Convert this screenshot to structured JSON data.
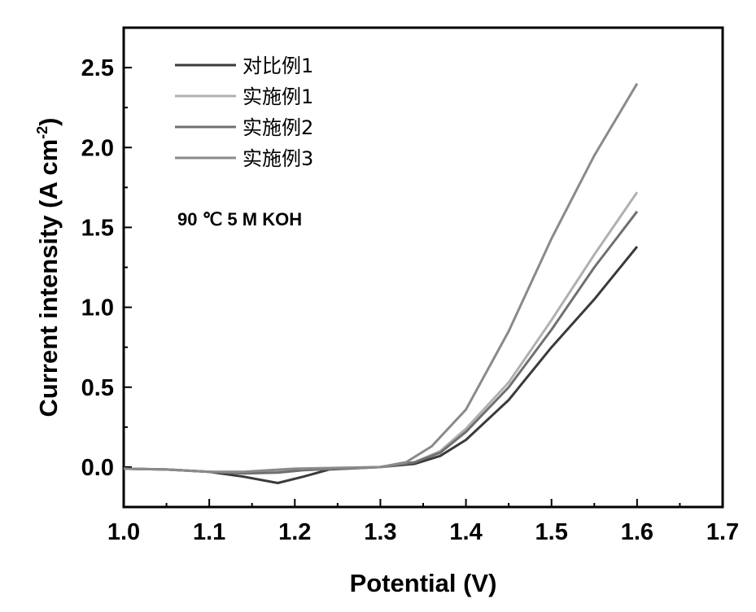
{
  "chart_data": {
    "type": "line",
    "xlabel": "Potential (V)",
    "ylabel_main": "Current intensity (A cm",
    "ylabel_sup": "-2",
    "ylabel_close": ")",
    "xlim": [
      1.0,
      1.7
    ],
    "ylim": [
      -0.25,
      2.75
    ],
    "x_ticks": [
      "1.0",
      "1.1",
      "1.2",
      "1.3",
      "1.4",
      "1.5",
      "1.6",
      "1.7"
    ],
    "y_ticks": [
      "0.0",
      "0.5",
      "1.0",
      "1.5",
      "2.0",
      "2.5"
    ],
    "grid": false,
    "legend_position": "top-left",
    "annotation": "90 ℃  5 M KOH",
    "series": [
      {
        "name": "对比例1",
        "color": "#3a3a3a",
        "points": [
          [
            1.0,
            -0.01
          ],
          [
            1.05,
            -0.015
          ],
          [
            1.1,
            -0.03
          ],
          [
            1.14,
            -0.06
          ],
          [
            1.18,
            -0.1
          ],
          [
            1.21,
            -0.06
          ],
          [
            1.24,
            -0.015
          ],
          [
            1.3,
            0.0
          ],
          [
            1.34,
            0.02
          ],
          [
            1.37,
            0.07
          ],
          [
            1.4,
            0.17
          ],
          [
            1.45,
            0.42
          ],
          [
            1.5,
            0.75
          ],
          [
            1.55,
            1.05
          ],
          [
            1.6,
            1.38
          ]
        ]
      },
      {
        "name": "实施例1",
        "color": "#b0b0b0",
        "points": [
          [
            1.0,
            -0.01
          ],
          [
            1.05,
            -0.015
          ],
          [
            1.1,
            -0.03
          ],
          [
            1.14,
            -0.035
          ],
          [
            1.18,
            -0.03
          ],
          [
            1.21,
            -0.015
          ],
          [
            1.25,
            -0.01
          ],
          [
            1.3,
            0.0
          ],
          [
            1.34,
            0.03
          ],
          [
            1.37,
            0.1
          ],
          [
            1.4,
            0.24
          ],
          [
            1.45,
            0.53
          ],
          [
            1.5,
            0.92
          ],
          [
            1.55,
            1.33
          ],
          [
            1.6,
            1.72
          ]
        ]
      },
      {
        "name": "实施例2",
        "color": "#707070",
        "points": [
          [
            1.0,
            -0.01
          ],
          [
            1.05,
            -0.015
          ],
          [
            1.1,
            -0.03
          ],
          [
            1.14,
            -0.04
          ],
          [
            1.18,
            -0.035
          ],
          [
            1.21,
            -0.02
          ],
          [
            1.25,
            -0.01
          ],
          [
            1.3,
            0.0
          ],
          [
            1.34,
            0.03
          ],
          [
            1.37,
            0.09
          ],
          [
            1.4,
            0.22
          ],
          [
            1.45,
            0.5
          ],
          [
            1.5,
            0.86
          ],
          [
            1.55,
            1.25
          ],
          [
            1.6,
            1.6
          ]
        ]
      },
      {
        "name": "实施例3",
        "color": "#8a8a8a",
        "points": [
          [
            1.0,
            -0.01
          ],
          [
            1.05,
            -0.015
          ],
          [
            1.1,
            -0.03
          ],
          [
            1.14,
            -0.03
          ],
          [
            1.17,
            -0.02
          ],
          [
            1.2,
            -0.01
          ],
          [
            1.25,
            -0.005
          ],
          [
            1.3,
            0.0
          ],
          [
            1.33,
            0.03
          ],
          [
            1.36,
            0.13
          ],
          [
            1.4,
            0.36
          ],
          [
            1.45,
            0.85
          ],
          [
            1.5,
            1.43
          ],
          [
            1.55,
            1.95
          ],
          [
            1.6,
            2.4
          ]
        ]
      }
    ]
  }
}
